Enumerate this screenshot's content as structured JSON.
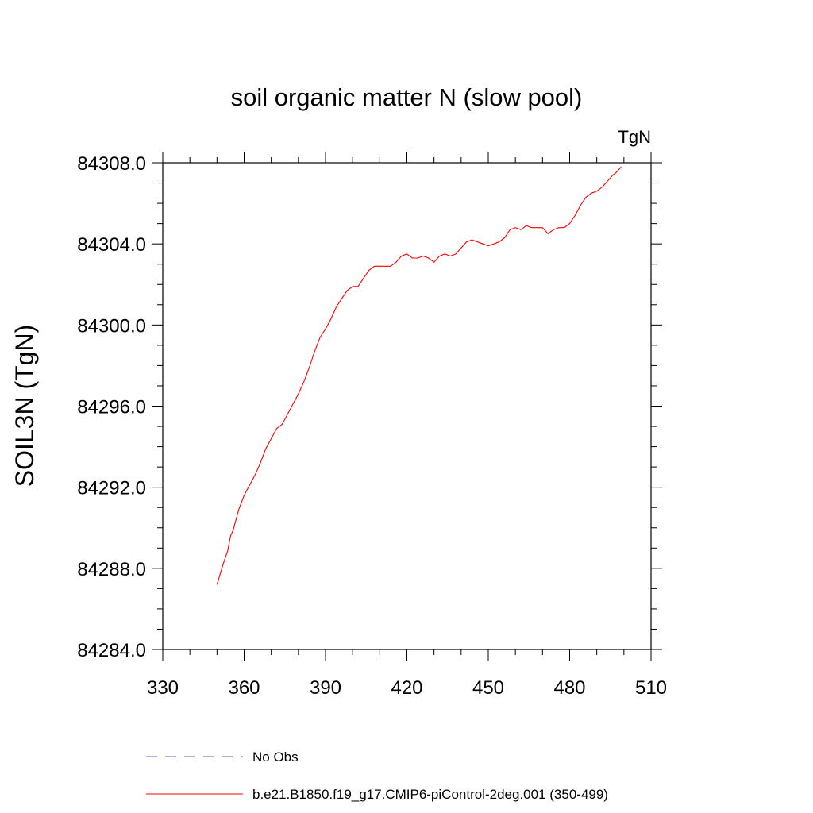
{
  "chart_data": {
    "type": "line",
    "title": "soil organic matter N (slow pool)",
    "units": "TgN",
    "ylabel": "SOIL3N  (TgN)",
    "xlabel": "",
    "xlim": [
      330,
      510
    ],
    "ylim": [
      84284.0,
      84308.0
    ],
    "xticks": [
      330,
      360,
      390,
      420,
      450,
      480,
      510
    ],
    "yticks": [
      "84284.0",
      "84288.0",
      "84292.0",
      "84296.0",
      "84300.0",
      "84304.0",
      "84308.0"
    ],
    "grid": false,
    "legend_position": "bottom",
    "series": [
      {
        "name": "No Obs",
        "color": "#6a5acd",
        "style": "dashed",
        "x": [],
        "y": []
      },
      {
        "name": "b.e21.B1850.f19_g17.CMIP6-piControl-2deg.001 (350-499)",
        "color": "#ff0000",
        "style": "solid",
        "x": [
          350,
          352,
          354,
          355,
          356,
          358,
          360,
          362,
          364,
          366,
          368,
          370,
          372,
          374,
          376,
          378,
          380,
          382,
          384,
          386,
          388,
          390,
          392,
          394,
          396,
          398,
          400,
          402,
          404,
          406,
          408,
          410,
          412,
          414,
          416,
          418,
          420,
          422,
          424,
          426,
          428,
          430,
          432,
          434,
          436,
          438,
          440,
          442,
          444,
          446,
          448,
          450,
          452,
          454,
          456,
          458,
          460,
          462,
          464,
          466,
          468,
          470,
          472,
          474,
          476,
          478,
          480,
          482,
          484,
          486,
          488,
          490,
          492,
          494,
          496,
          497,
          499
        ],
        "y": [
          84287.2,
          84288.1,
          84288.9,
          84289.6,
          84289.9,
          84290.9,
          84291.6,
          84292.1,
          84292.6,
          84293.2,
          84293.9,
          84294.4,
          84294.9,
          84295.1,
          84295.6,
          84296.1,
          84296.6,
          84297.2,
          84297.9,
          84298.7,
          84299.4,
          84299.8,
          84300.3,
          84300.9,
          84301.3,
          84301.7,
          84301.9,
          84301.9,
          84302.3,
          84302.7,
          84302.9,
          84302.9,
          84302.9,
          84302.9,
          84303.1,
          84303.4,
          84303.5,
          84303.3,
          84303.3,
          84303.4,
          84303.3,
          84303.1,
          84303.4,
          84303.5,
          84303.4,
          84303.5,
          84303.8,
          84304.1,
          84304.2,
          84304.1,
          84304.0,
          84303.9,
          84304.0,
          84304.1,
          84304.3,
          84304.7,
          84304.8,
          84304.7,
          84304.9,
          84304.8,
          84304.8,
          84304.8,
          84304.5,
          84304.7,
          84304.8,
          84304.8,
          84305.0,
          84305.4,
          84305.9,
          84306.3,
          84306.5,
          84306.6,
          84306.8,
          84307.1,
          84307.4,
          84307.5,
          84307.8
        ]
      }
    ]
  }
}
